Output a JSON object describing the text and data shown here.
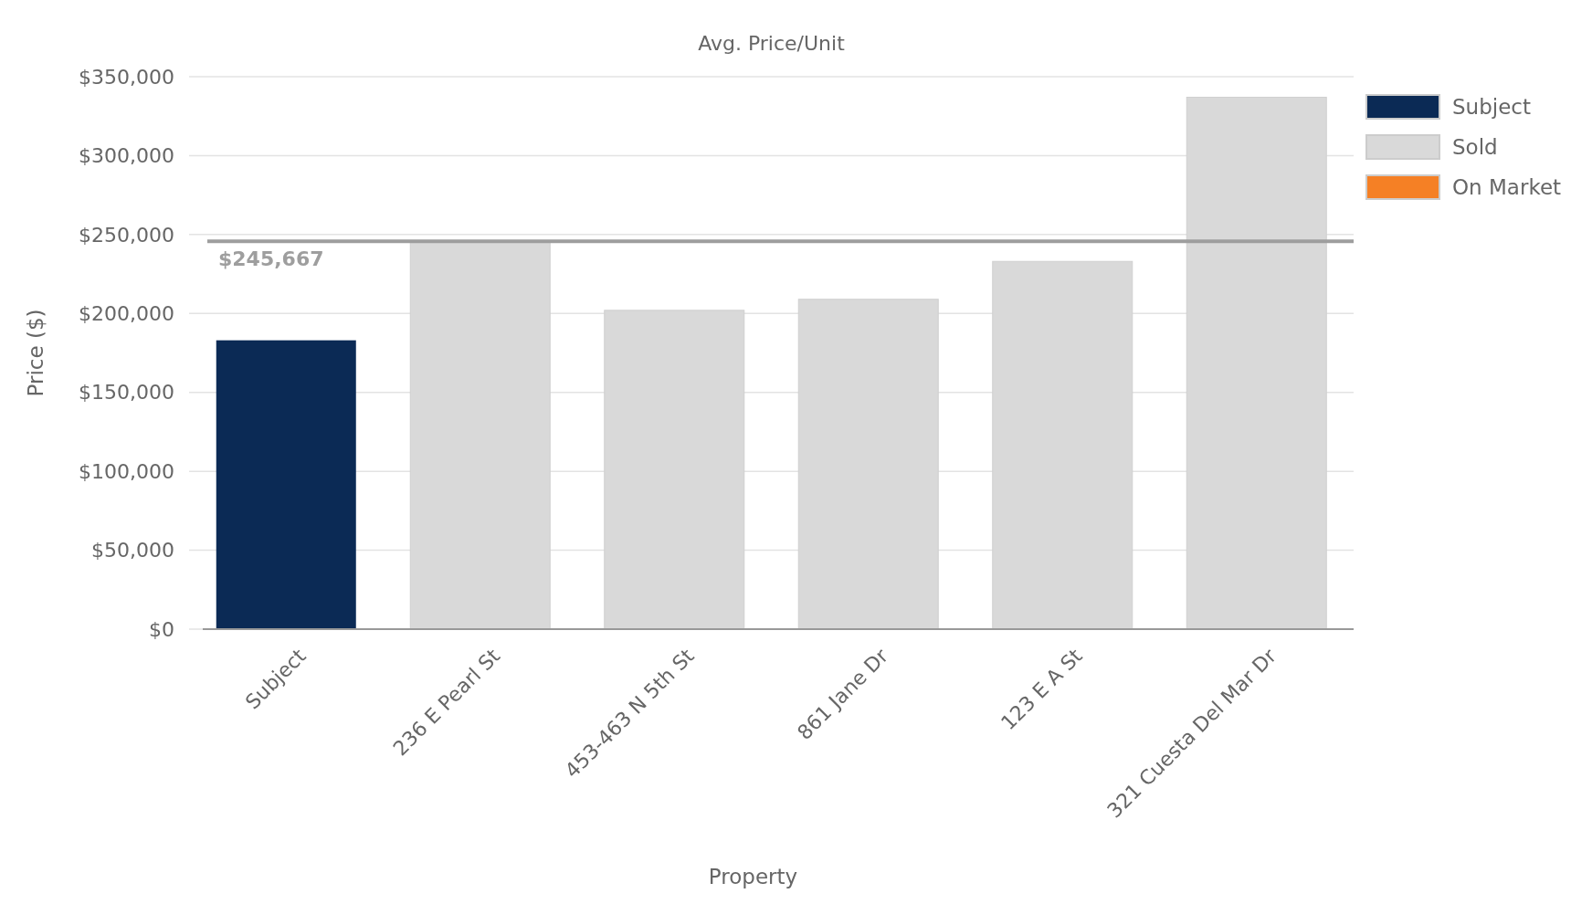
{
  "chart_data": {
    "type": "bar",
    "title": "Avg. Price/Unit",
    "xlabel": "Property",
    "ylabel": "Price ($)",
    "categories": [
      "Subject",
      "236 E Pearl St",
      "453-463 N 5th St",
      "861 Jane Dr",
      "123 E A St",
      "321 Cuesta Del Mar Dr"
    ],
    "series": [
      {
        "name": "Subject",
        "color": "#0b2a55",
        "values": [
          183000,
          null,
          null,
          null,
          null,
          null
        ]
      },
      {
        "name": "Sold",
        "color": "#d9d9d9",
        "values": [
          null,
          246000,
          202000,
          209000,
          233000,
          337000
        ]
      },
      {
        "name": "On Market",
        "color": "#f58025",
        "values": [
          null,
          null,
          null,
          null,
          null,
          null
        ]
      }
    ],
    "ylim": [
      0,
      350000
    ],
    "yticks": [
      {
        "value": 0,
        "label": "$0"
      },
      {
        "value": 50000,
        "label": "$50,000"
      },
      {
        "value": 100000,
        "label": "$100,000"
      },
      {
        "value": 150000,
        "label": "$150,000"
      },
      {
        "value": 200000,
        "label": "$200,000"
      },
      {
        "value": 250000,
        "label": "$250,000"
      },
      {
        "value": 300000,
        "label": "$300,000"
      },
      {
        "value": 350000,
        "label": "$350,000"
      }
    ],
    "grid": "y",
    "legend": "right",
    "ref_lines": [
      {
        "axis": "y",
        "value": 245667,
        "label": "$245,667",
        "color": "#9e9e9e"
      }
    ]
  }
}
